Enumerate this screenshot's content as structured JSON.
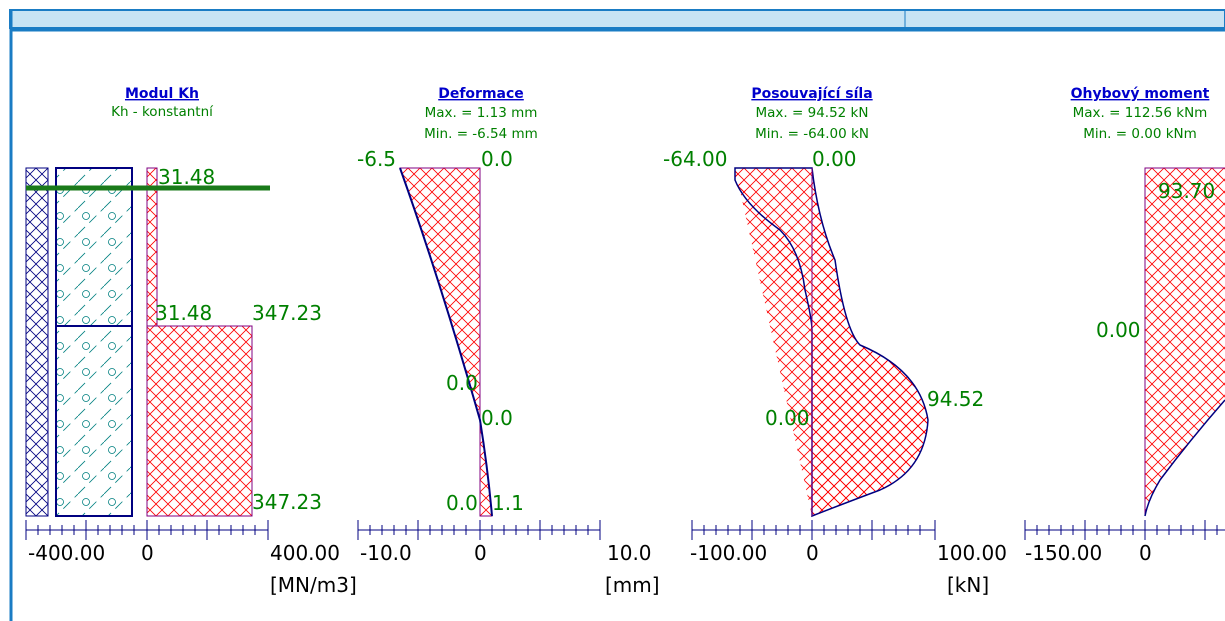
{
  "panels": [
    {
      "title": "Modul Kh",
      "lines": [
        "Kh - konstantní"
      ],
      "labels": [
        "31.48",
        "31.48",
        "347.23",
        "347.23"
      ],
      "axis_labels": [
        "-400.00",
        "0",
        "400.00"
      ],
      "unit": "[MN/m3]"
    },
    {
      "title": "Deformace",
      "lines": [
        "Max. = 1.13 mm",
        "Min. = -6.54 mm"
      ],
      "labels": [
        "-6.5",
        "0.0",
        "0.0",
        "0.0",
        "0.0",
        "1.1"
      ],
      "axis_labels": [
        "-10.0",
        "0",
        "10.0"
      ],
      "unit": "[mm]"
    },
    {
      "title": "Posouvající síla",
      "lines": [
        "Max. = 94.52 kN",
        "Min. = -64.00 kN"
      ],
      "labels": [
        "-64.00",
        "0.00",
        "0.00",
        "94.52"
      ],
      "axis_labels": [
        "-100.00",
        "0",
        "100.00"
      ],
      "unit": "[kN]"
    },
    {
      "title": "Ohybový moment",
      "lines": [
        "Max. = 112.56 kNm",
        "Min. = 0.00 kNm"
      ],
      "labels": [
        "93.70",
        "0.00"
      ],
      "axis_labels": [
        "-150.00",
        "0"
      ]
    }
  ]
}
